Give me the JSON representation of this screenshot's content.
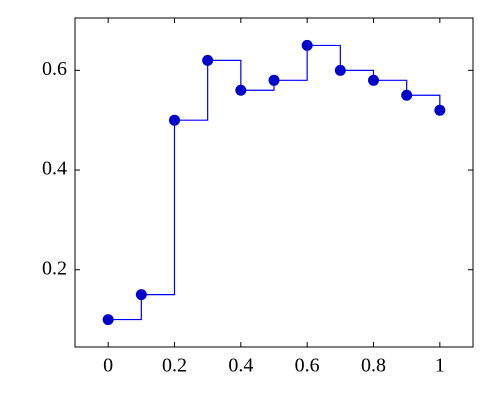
{
  "chart_data": {
    "type": "step",
    "x": [
      0,
      0.1,
      0.2,
      0.3,
      0.4,
      0.5,
      0.6,
      0.7,
      0.8,
      0.9,
      1
    ],
    "values": [
      0.1,
      0.15,
      0.5,
      0.62,
      0.56,
      0.58,
      0.65,
      0.6,
      0.58,
      0.55,
      0.52
    ],
    "color": "#0000ff",
    "marker_color": "#0000cc",
    "xlim": [
      -0.1,
      1.1
    ],
    "ylim": [
      0.045,
      0.705
    ],
    "xticks": [
      0,
      0.2,
      0.4,
      0.6,
      0.8,
      1
    ],
    "yticks": [
      0.2,
      0.4,
      0.6
    ],
    "grid": false
  }
}
